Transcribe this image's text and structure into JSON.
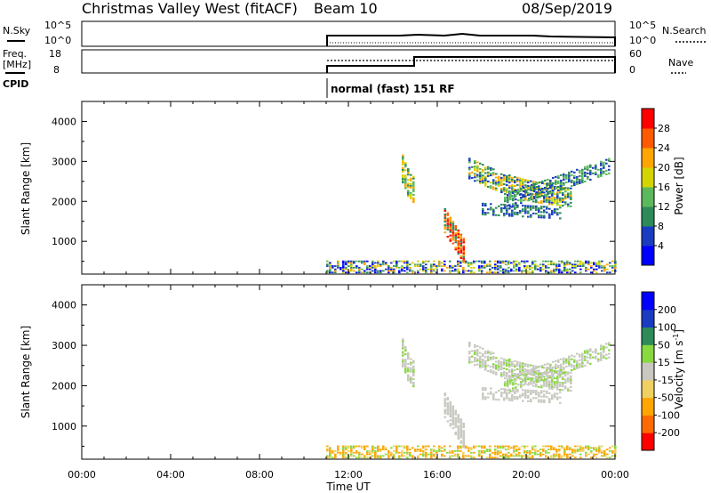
{
  "header": {
    "station": "Christmas Valley West (fitACF)",
    "beam": "Beam 10",
    "date": "08/Sep/2019"
  },
  "top_panels": {
    "nsky_label": "N.Sky",
    "nsky_ticks": [
      "10^5",
      "10^0"
    ],
    "nsearch_label": "N.Search",
    "nsearch_ticks": [
      "10^5",
      "10^0"
    ],
    "freq_label_1": "Freq.",
    "freq_label_2": "[MHz]",
    "freq_ticks": [
      "18",
      "8"
    ],
    "nave_label": "Nave",
    "nave_ticks": [
      "60",
      "0"
    ],
    "cpid_label": "CPID",
    "cpid_text": "normal (fast) 151 RF"
  },
  "chart_data": [
    {
      "type": "heatmap",
      "name": "power",
      "ylabel": "Slant Range [km]",
      "yticks": [
        "4000",
        "3000",
        "2000",
        "1000"
      ],
      "ylim": [
        180,
        4500
      ],
      "colorbar_label": "Power [dB]",
      "colorbar_ticks": [
        "28",
        "24",
        "20",
        "16",
        "12",
        "8",
        "4"
      ],
      "colorbar_colors": [
        "#0000ff",
        "#1a3cc0",
        "#2e8b57",
        "#5cb85c",
        "#d4d400",
        "#ffa500",
        "#ff5a00",
        "#ff0000"
      ],
      "colorbar_range": [
        0,
        32
      ]
    },
    {
      "type": "heatmap",
      "name": "velocity",
      "ylabel": "Slant Range [km]",
      "yticks": [
        "4000",
        "3000",
        "2000",
        "1000"
      ],
      "ylim": [
        180,
        4500
      ],
      "colorbar_label": "Velocity [m s",
      "colorbar_label_sup": "-1",
      "colorbar_label_end": "]",
      "colorbar_ticks": [
        "200",
        "100",
        "50",
        "15",
        "-15",
        "-50",
        "-100",
        "-200"
      ],
      "colorbar_colors": [
        "#ff0000",
        "#ff6a00",
        "#ffa500",
        "#f0d060",
        "#c8c8c0",
        "#88d840",
        "#2e8b57",
        "#1a3cc0",
        "#0000ff"
      ]
    }
  ],
  "time_axis": {
    "label": "Time UT",
    "ticks": [
      "00:00",
      "04:00",
      "08:00",
      "12:00",
      "16:00",
      "20:00",
      "00:00"
    ]
  }
}
